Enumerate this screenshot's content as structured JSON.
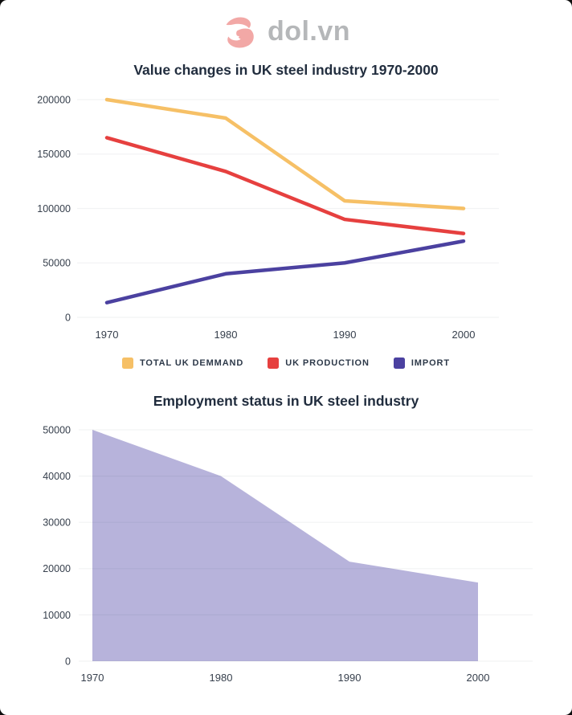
{
  "logo": {
    "text": "dol.vn",
    "icon": "dol-swoosh-icon"
  },
  "colors": {
    "page_bg": "#0c0c0c",
    "card_bg": "#ffffff",
    "title": "#212d3e",
    "axis_text": "#37404d",
    "legend_text": "#2d3949",
    "logo_text": "#b5b7b9",
    "logo_icon": "#f2a8a6",
    "gridline": "#f0f0f1"
  },
  "chart_data": [
    {
      "type": "line",
      "title": "Value changes in UK steel industry 1970-2000",
      "categories": [
        "1970",
        "1980",
        "1990",
        "2000"
      ],
      "series": [
        {
          "name": "TOTAL UK DEMMAND",
          "color": "#F6C066",
          "values": [
            200000,
            183000,
            107000,
            100000
          ]
        },
        {
          "name": "UK PRODUCTION",
          "color": "#E6403F",
          "values": [
            165000,
            134000,
            90000,
            77000
          ]
        },
        {
          "name": "IMPORT",
          "color": "#4B41A0",
          "values": [
            13500,
            40000,
            50000,
            70000
          ]
        }
      ],
      "xlabel": "",
      "ylabel": "",
      "ylim": [
        0,
        200000
      ],
      "ytick_step": 50000,
      "grid": true,
      "legend_position": "bottom"
    },
    {
      "type": "area",
      "title": "Employment status in UK steel industry",
      "categories": [
        "1970",
        "1980",
        "1990",
        "2000"
      ],
      "values": [
        50000,
        40000,
        21500,
        17000
      ],
      "fill_color": "#B7B3DB",
      "xlabel": "",
      "ylabel": "",
      "ylim": [
        0,
        50000
      ],
      "ytick_step": 10000,
      "grid": true,
      "legend_position": "none"
    }
  ]
}
